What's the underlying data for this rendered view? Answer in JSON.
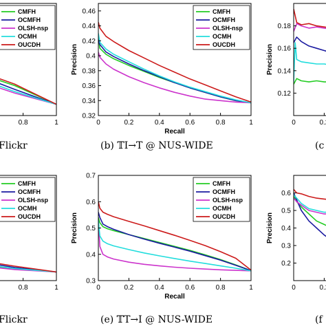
{
  "colors": {
    "CMFH": "#22cc22",
    "OCMFH": "#1a1aa0",
    "OLSH-nsp": "#cc33cc",
    "OCMH": "#22dddd",
    "OUCDH": "#cc1a1a"
  },
  "captions": {
    "top_left_partial": "Flickr",
    "top_center": "(b) 𝕋I→T @ NUS-WIDE",
    "top_right_partial": "(c",
    "bottom_left_partial": "Flickr",
    "bottom_center": "(e) 𝕋T→I @ NUS-WIDE",
    "bottom_right_partial": "(f"
  },
  "chart_data": [
    {
      "id": "top-left",
      "type": "line",
      "xlabel": "",
      "ylabel": "",
      "xlim": [
        0,
        1
      ],
      "ylim": [
        0.32,
        0.47
      ],
      "xticks": [
        "0.8",
        "1"
      ],
      "yticks": [],
      "legend": [
        "CMFH",
        "OCMFH",
        "OLSH-nsp",
        "OCMH",
        "OUCDH"
      ],
      "legend_position": "top-right",
      "series": [
        {
          "name": "CMFH",
          "x": [
            0.55,
            0.75,
            1.0
          ],
          "y": [
            0.375,
            0.36,
            0.335
          ]
        },
        {
          "name": "OCMFH",
          "x": [
            0.55,
            0.75,
            1.0
          ],
          "y": [
            0.372,
            0.355,
            0.335
          ]
        },
        {
          "name": "OLSH-nsp",
          "x": [
            0.55,
            0.75,
            1.0
          ],
          "y": [
            0.365,
            0.35,
            0.335
          ]
        },
        {
          "name": "OCMH",
          "x": [
            0.55,
            0.75,
            1.0
          ],
          "y": [
            0.368,
            0.352,
            0.335
          ]
        },
        {
          "name": "OUCDH",
          "x": [
            0.55,
            0.75,
            1.0
          ],
          "y": [
            0.378,
            0.362,
            0.335
          ]
        }
      ]
    },
    {
      "id": "top-center",
      "type": "line",
      "xlabel": "Recall",
      "ylabel": "Precision",
      "xlim": [
        0,
        1
      ],
      "ylim": [
        0.32,
        0.47
      ],
      "xticks": [
        "0",
        "0.2",
        "0.4",
        "0.6",
        "0.8",
        "1"
      ],
      "yticks": [
        "0.32",
        "0.34",
        "0.36",
        "0.38",
        "0.4",
        "0.42",
        "0.44",
        "0.46"
      ],
      "legend": [
        "CMFH",
        "OCMFH",
        "OLSH-nsp",
        "OCMH",
        "OUCDH"
      ],
      "legend_position": "top-right",
      "series": [
        {
          "name": "CMFH",
          "x": [
            0,
            0.01,
            0.05,
            0.1,
            0.2,
            0.3,
            0.4,
            0.5,
            0.6,
            0.7,
            0.8,
            0.9,
            1.0
          ],
          "y": [
            0.425,
            0.41,
            0.402,
            0.396,
            0.387,
            0.379,
            0.371,
            0.364,
            0.357,
            0.351,
            0.345,
            0.34,
            0.337
          ]
        },
        {
          "name": "OCMFH",
          "x": [
            0,
            0.01,
            0.05,
            0.1,
            0.2,
            0.3,
            0.4,
            0.5,
            0.6,
            0.7,
            0.8,
            0.9,
            1.0
          ],
          "y": [
            0.422,
            0.415,
            0.405,
            0.399,
            0.389,
            0.38,
            0.372,
            0.364,
            0.357,
            0.351,
            0.345,
            0.34,
            0.337
          ]
        },
        {
          "name": "OLSH-nsp",
          "x": [
            0,
            0.01,
            0.05,
            0.1,
            0.2,
            0.3,
            0.4,
            0.5,
            0.6,
            0.7,
            0.8,
            0.9,
            1.0
          ],
          "y": [
            0.405,
            0.398,
            0.389,
            0.382,
            0.372,
            0.364,
            0.357,
            0.351,
            0.346,
            0.342,
            0.34,
            0.338,
            0.337
          ]
        },
        {
          "name": "OCMH",
          "x": [
            0,
            0.01,
            0.05,
            0.1,
            0.2,
            0.3,
            0.4,
            0.5,
            0.6,
            0.7,
            0.8,
            0.9,
            1.0
          ],
          "y": [
            0.43,
            0.418,
            0.409,
            0.402,
            0.392,
            0.382,
            0.373,
            0.365,
            0.358,
            0.352,
            0.346,
            0.341,
            0.337
          ]
        },
        {
          "name": "OUCDH",
          "x": [
            0,
            0.01,
            0.05,
            0.1,
            0.2,
            0.3,
            0.4,
            0.5,
            0.6,
            0.7,
            0.8,
            0.9,
            1.0
          ],
          "y": [
            0.445,
            0.437,
            0.426,
            0.419,
            0.407,
            0.397,
            0.387,
            0.378,
            0.369,
            0.361,
            0.353,
            0.345,
            0.338
          ]
        }
      ]
    },
    {
      "id": "top-right",
      "type": "line",
      "xlabel": "",
      "ylabel": "Precision",
      "xlim": [
        0,
        1
      ],
      "ylim": [
        0.1,
        0.2
      ],
      "xticks": [
        "0",
        "0.2"
      ],
      "yticks": [
        "0.12",
        "0.14",
        "0.16",
        "0.18"
      ],
      "legend": [],
      "series": [
        {
          "name": "CMFH",
          "x": [
            0,
            0.02,
            0.05,
            0.1,
            0.15,
            0.2,
            0.25
          ],
          "y": [
            0.128,
            0.133,
            0.131,
            0.13,
            0.131,
            0.13,
            0.13
          ]
        },
        {
          "name": "OCMFH",
          "x": [
            0,
            0.02,
            0.05,
            0.1,
            0.15,
            0.2,
            0.25
          ],
          "y": [
            0.165,
            0.17,
            0.166,
            0.162,
            0.16,
            0.158,
            0.156
          ]
        },
        {
          "name": "OLSH-nsp",
          "x": [
            0,
            0.02,
            0.05,
            0.1,
            0.15,
            0.2,
            0.25
          ],
          "y": [
            0.175,
            0.182,
            0.18,
            0.178,
            0.179,
            0.178,
            0.177
          ]
        },
        {
          "name": "OCMH",
          "x": [
            0,
            0.01,
            0.02,
            0.05,
            0.1,
            0.15,
            0.2,
            0.25
          ],
          "y": [
            0.13,
            0.165,
            0.15,
            0.148,
            0.147,
            0.146,
            0.146,
            0.145
          ]
        },
        {
          "name": "OUCDH",
          "x": [
            0,
            0.02,
            0.05,
            0.1,
            0.15,
            0.2,
            0.25
          ],
          "y": [
            0.195,
            0.183,
            0.181,
            0.182,
            0.18,
            0.179,
            0.178
          ]
        }
      ]
    },
    {
      "id": "bottom-left",
      "type": "line",
      "xlabel": "",
      "ylabel": "",
      "xlim": [
        0,
        1
      ],
      "ylim": [
        0.3,
        0.7
      ],
      "xticks": [
        "0.8",
        "1"
      ],
      "yticks": [],
      "legend": [
        "CMFH",
        "OCMFH",
        "OLSH-nsp",
        "OCMH",
        "OUCDH"
      ],
      "legend_position": "top-right",
      "series": [
        {
          "name": "CMFH",
          "x": [
            0.55,
            0.75,
            1.0
          ],
          "y": [
            0.36,
            0.345,
            0.333
          ]
        },
        {
          "name": "OCMFH",
          "x": [
            0.55,
            0.75,
            1.0
          ],
          "y": [
            0.37,
            0.35,
            0.333
          ]
        },
        {
          "name": "OLSH-nsp",
          "x": [
            0.55,
            0.75,
            1.0
          ],
          "y": [
            0.355,
            0.342,
            0.333
          ]
        },
        {
          "name": "OCMH",
          "x": [
            0.55,
            0.75,
            1.0
          ],
          "y": [
            0.362,
            0.346,
            0.333
          ]
        },
        {
          "name": "OUCDH",
          "x": [
            0.55,
            0.75,
            1.0
          ],
          "y": [
            0.375,
            0.355,
            0.333
          ]
        }
      ]
    },
    {
      "id": "bottom-center",
      "type": "line",
      "xlabel": "Recall",
      "ylabel": "Precision",
      "xlim": [
        0,
        1
      ],
      "ylim": [
        0.3,
        0.7
      ],
      "xticks": [
        "0",
        "0.2",
        "0.4",
        "0.6",
        "0.8",
        "1"
      ],
      "yticks": [
        "0.3",
        "0.4",
        "0.5",
        "0.6",
        "0.7"
      ],
      "legend": [
        "CMFH",
        "OCMFH",
        "OLSH-nsp",
        "OCMH",
        "OUCDH"
      ],
      "legend_position": "top-right",
      "series": [
        {
          "name": "CMFH",
          "x": [
            0,
            0.01,
            0.03,
            0.06,
            0.1,
            0.2,
            0.3,
            0.4,
            0.5,
            0.6,
            0.7,
            0.8,
            0.9,
            1.0
          ],
          "y": [
            0.54,
            0.52,
            0.505,
            0.497,
            0.49,
            0.475,
            0.46,
            0.445,
            0.43,
            0.415,
            0.398,
            0.38,
            0.36,
            0.338
          ]
        },
        {
          "name": "OCMFH",
          "x": [
            0,
            0.01,
            0.03,
            0.06,
            0.1,
            0.2,
            0.3,
            0.4,
            0.5,
            0.6,
            0.7,
            0.8,
            0.9,
            1.0
          ],
          "y": [
            0.56,
            0.54,
            0.515,
            0.505,
            0.495,
            0.475,
            0.458,
            0.442,
            0.427,
            0.412,
            0.395,
            0.378,
            0.358,
            0.338
          ]
        },
        {
          "name": "OLSH-nsp",
          "x": [
            0,
            0.005,
            0.01,
            0.03,
            0.06,
            0.1,
            0.2,
            0.3,
            0.4,
            0.5,
            0.6,
            0.7,
            0.8,
            0.9,
            1.0
          ],
          "y": [
            0.53,
            0.48,
            0.43,
            0.4,
            0.39,
            0.382,
            0.37,
            0.362,
            0.356,
            0.351,
            0.347,
            0.344,
            0.341,
            0.339,
            0.337
          ]
        },
        {
          "name": "OCMH",
          "x": [
            0,
            0.01,
            0.03,
            0.06,
            0.1,
            0.2,
            0.3,
            0.4,
            0.5,
            0.6,
            0.7,
            0.8,
            0.9,
            1.0
          ],
          "y": [
            0.53,
            0.47,
            0.45,
            0.44,
            0.432,
            0.418,
            0.405,
            0.394,
            0.384,
            0.374,
            0.365,
            0.356,
            0.347,
            0.337
          ]
        },
        {
          "name": "OUCDH",
          "x": [
            0,
            0.01,
            0.03,
            0.06,
            0.1,
            0.2,
            0.3,
            0.4,
            0.5,
            0.6,
            0.7,
            0.8,
            0.9,
            1.0
          ],
          "y": [
            0.6,
            0.575,
            0.56,
            0.552,
            0.543,
            0.525,
            0.508,
            0.49,
            0.472,
            0.453,
            0.433,
            0.41,
            0.385,
            0.34
          ]
        }
      ]
    },
    {
      "id": "bottom-right",
      "type": "line",
      "xlabel": "",
      "ylabel": "Precision",
      "xlim": [
        0,
        1
      ],
      "ylim": [
        0.1,
        0.7
      ],
      "xticks": [
        "0",
        "0.2"
      ],
      "yticks": [
        "0.2",
        "0.3",
        "0.4",
        "0.5",
        "0.6"
      ],
      "legend": [],
      "series": [
        {
          "name": "CMFH",
          "x": [
            0,
            0.02,
            0.05,
            0.1,
            0.15,
            0.2,
            0.25
          ],
          "y": [
            0.58,
            0.55,
            0.52,
            0.48,
            0.44,
            0.42,
            0.4
          ]
        },
        {
          "name": "OCMFH",
          "x": [
            0,
            0.02,
            0.05,
            0.1,
            0.15,
            0.2,
            0.25
          ],
          "y": [
            0.6,
            0.56,
            0.5,
            0.44,
            0.4,
            0.36,
            0.33
          ]
        },
        {
          "name": "OLSH-nsp",
          "x": [
            0,
            0.02,
            0.05,
            0.1,
            0.15,
            0.2,
            0.25
          ],
          "y": [
            0.57,
            0.55,
            0.53,
            0.5,
            0.49,
            0.48,
            0.48
          ]
        },
        {
          "name": "OCMH",
          "x": [
            0,
            0.02,
            0.05,
            0.1,
            0.15,
            0.2,
            0.25
          ],
          "y": [
            0.59,
            0.57,
            0.54,
            0.51,
            0.5,
            0.49,
            0.49
          ]
        },
        {
          "name": "OUCDH",
          "x": [
            0,
            0.02,
            0.05,
            0.1,
            0.15,
            0.2,
            0.25
          ],
          "y": [
            0.62,
            0.6,
            0.595,
            0.58,
            0.57,
            0.565,
            0.56
          ]
        }
      ]
    }
  ]
}
